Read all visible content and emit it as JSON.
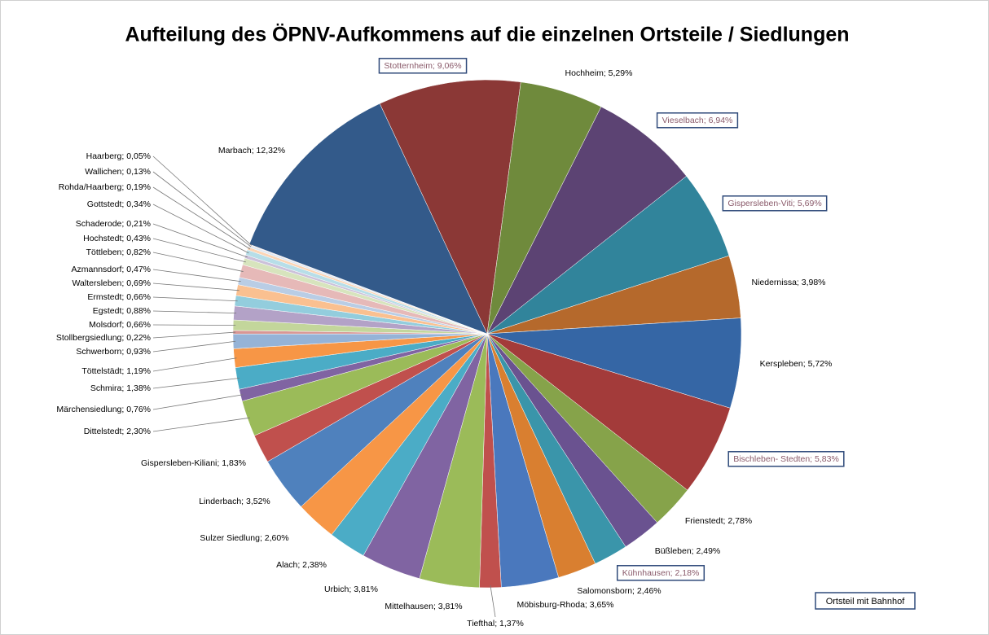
{
  "chart_data": {
    "type": "pie",
    "title": "Aufteilung des ÖPNV-Aufkommens auf die einzelnen Ortsteile / Siedlungen",
    "values": [
      9.06,
      5.29,
      6.94,
      5.69,
      3.98,
      5.72,
      5.83,
      2.78,
      2.49,
      2.18,
      2.46,
      3.65,
      1.37,
      3.81,
      3.81,
      2.38,
      2.6,
      3.52,
      1.83,
      2.3,
      0.76,
      1.38,
      1.19,
      0.93,
      0.22,
      0.66,
      0.88,
      0.66,
      0.69,
      0.47,
      0.82,
      0.43,
      0.21,
      0.34,
      0.19,
      0.13,
      0.05,
      12.32
    ],
    "value_labels": [
      "Stotternheim; 9,06%",
      "Hochheim; 5,29%",
      "Vieselbach; 6,94%",
      "Gispersleben-Viti; 5,69%",
      "Niedernissa; 3,98%",
      "Kerspleben; 5,72%",
      "Bischleben- Stedten; 5,83%",
      "Frienstedt; 2,78%",
      "Büßleben; 2,49%",
      "Kühnhausen; 2,18%",
      "Salomonsborn; 2,46%",
      "Möbisburg-Rhoda; 3,65%",
      "Tiefthal; 1,37%",
      "Mittelhausen; 3,81%",
      "Urbich; 3,81%",
      "Alach; 2,38%",
      "Sulzer Siedlung; 2,60%",
      "Linderbach; 3,52%",
      "Gispersleben-Kiliani; 1,83%",
      "Dittelstedt; 2,30%",
      "Märchensiedlung; 0,76%",
      "Schmira; 1,38%",
      "Töttelstädt; 1,19%",
      "Schwerborn; 0,93%",
      "Stollbergsiedlung; 0,22%",
      "Molsdorf; 0,66%",
      "Egstedt; 0,88%",
      "Ermstedt; 0,66%",
      "Waltersleben; 0,69%",
      "Azmannsdorf; 0,47%",
      "Töttleben; 0,82%",
      "Hochstedt; 0,43%",
      "Schaderode; 0,21%",
      "Gottstedt; 0,34%",
      "Rohda/Haarberg; 0,19%",
      "Wallichen; 0,13%",
      "Haarberg; 0,05%",
      "Marbach; 12,32%"
    ],
    "colors": [
      "#8B3836",
      "#6F8A3C",
      "#5C4373",
      "#31849B",
      "#B5692C",
      "#3566A5",
      "#A33B3A",
      "#86A34A",
      "#6A5290",
      "#3A95AA",
      "#D97F30",
      "#4A78BD",
      "#C0504D",
      "#9BBB59",
      "#8064A2",
      "#4BACC6",
      "#F79646",
      "#4F81BD",
      "#C0504D",
      "#9BBB59",
      "#8064A2",
      "#4BACC6",
      "#F79646",
      "#95B3D7",
      "#D99694",
      "#C3D69B",
      "#B3A2C7",
      "#93CDDD",
      "#FAC090",
      "#B9CDE5",
      "#E6B9B8",
      "#D7E4BD",
      "#CCC1DA",
      "#B7DEE8",
      "#FCD5B5",
      "#DCE6F2",
      "#F2DCDB",
      "#335A8A"
    ],
    "highlight": [
      true,
      false,
      true,
      true,
      false,
      false,
      true,
      false,
      false,
      true,
      false,
      false,
      false,
      false,
      false,
      false,
      false,
      false,
      false,
      false,
      false,
      false,
      false,
      false,
      false,
      false,
      false,
      false,
      false,
      false,
      false,
      false,
      false,
      false,
      false,
      false,
      false,
      false
    ],
    "legend_label": "Ortsteil mit Bahnhof"
  }
}
